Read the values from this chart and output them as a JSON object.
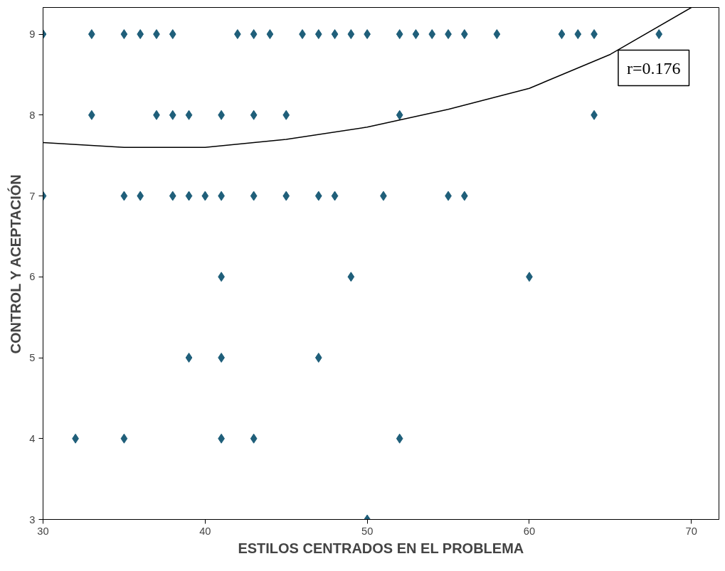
{
  "chart_data": {
    "type": "scatter",
    "xlabel": "ESTILOS CENTRADOS EN EL PROBLEMA",
    "ylabel": "CONTROL Y ACEPTACIÓN",
    "xlim": [
      30,
      71.7
    ],
    "ylim": [
      3,
      9.33
    ],
    "xticks": [
      30,
      40,
      50,
      60,
      70
    ],
    "yticks": [
      3,
      4,
      5,
      6,
      7,
      8,
      9
    ],
    "grid": false,
    "marker": "diamond",
    "annotations": [
      "r=0.176"
    ],
    "series": [
      {
        "color": "#1f5f7a",
        "x": [
          30,
          33,
          35,
          36,
          37,
          38,
          42,
          43,
          44,
          46,
          47,
          48,
          49,
          50,
          52,
          53,
          54,
          55,
          56,
          58,
          62,
          63,
          64,
          68,
          33,
          37,
          38,
          39,
          41,
          43,
          45,
          52,
          64,
          30,
          35,
          36,
          38,
          39,
          40,
          41,
          43,
          45,
          47,
          48,
          51,
          55,
          56,
          41,
          49,
          60,
          39,
          41,
          47,
          32,
          35,
          41,
          43,
          52,
          50
        ],
        "values": [
          9,
          9,
          9,
          9,
          9,
          9,
          9,
          9,
          9,
          9,
          9,
          9,
          9,
          9,
          9,
          9,
          9,
          9,
          9,
          9,
          9,
          9,
          9,
          9,
          8,
          8,
          8,
          8,
          8,
          8,
          8,
          8,
          8,
          7,
          7,
          7,
          7,
          7,
          7,
          7,
          7,
          7,
          7,
          7,
          7,
          7,
          7,
          6,
          6,
          6,
          5,
          5,
          5,
          4,
          4,
          4,
          4,
          4,
          3
        ]
      },
      {
        "type": "line",
        "color": "#000000",
        "line_style": "solid",
        "marker": "none",
        "x": [
          30,
          35,
          40,
          45,
          50,
          55,
          60,
          65,
          70
        ],
        "values": [
          7.66,
          7.6,
          7.6,
          7.7,
          7.85,
          8.07,
          8.33,
          8.75,
          9.33
        ]
      }
    ]
  }
}
